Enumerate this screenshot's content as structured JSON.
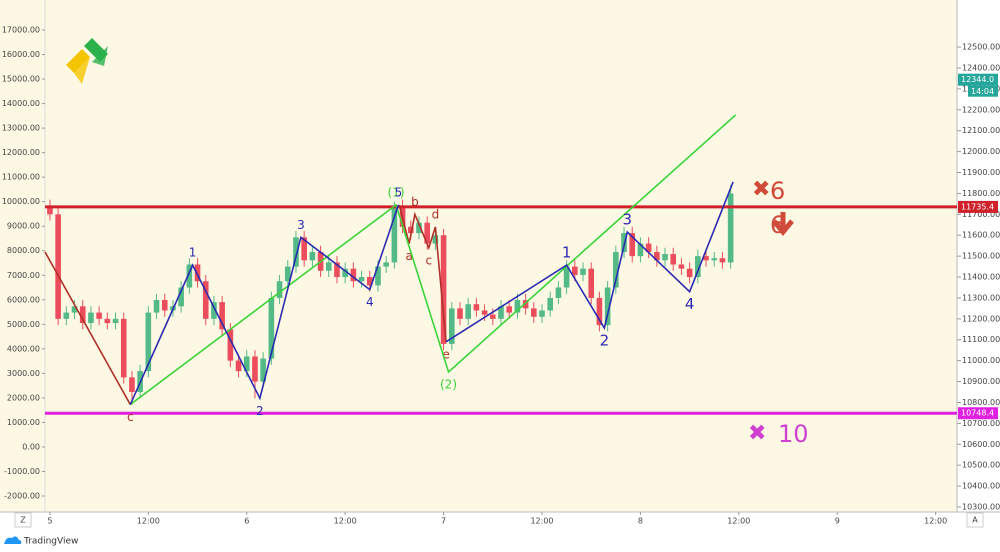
{
  "chart_data": {
    "type": "candlestick",
    "x": [
      0,
      1,
      2,
      3,
      4,
      5,
      6,
      7,
      8,
      9,
      10,
      11,
      12,
      13,
      14,
      15,
      16,
      17,
      18,
      19,
      20,
      21,
      22,
      23,
      24,
      25,
      26,
      27,
      28,
      29,
      30,
      31,
      32,
      33,
      34,
      35,
      36,
      37,
      38,
      39,
      40,
      41,
      42,
      43,
      44,
      45,
      46,
      47,
      48,
      49,
      50,
      51,
      52,
      53,
      54,
      55,
      56,
      57,
      58,
      59,
      60,
      61,
      62,
      63,
      64,
      65,
      66,
      67,
      68,
      69,
      70,
      71,
      72,
      73,
      74,
      75,
      76,
      77,
      78,
      79,
      80,
      81,
      82,
      83
    ],
    "open": [
      11740,
      11700,
      11200,
      11230,
      11260,
      11180,
      11230,
      11200,
      11180,
      11200,
      10920,
      10850,
      10950,
      11230,
      11290,
      11240,
      11260,
      11350,
      11460,
      11380,
      11200,
      11280,
      11150,
      11000,
      10950,
      11020,
      10900,
      11010,
      11300,
      11380,
      11450,
      11590,
      11480,
      11520,
      11430,
      11470,
      11400,
      11440,
      11380,
      11400,
      11360,
      11450,
      11470,
      11740,
      11640,
      11610,
      11660,
      11560,
      11600,
      11080,
      11250,
      11200,
      11270,
      11240,
      11220,
      11200,
      11260,
      11230,
      11290,
      11250,
      11210,
      11240,
      11300,
      11350,
      11450,
      11410,
      11440,
      11300,
      11170,
      11350,
      11520,
      11610,
      11500,
      11560,
      11520,
      11480,
      11510,
      11460,
      11440,
      11400,
      11500,
      11480,
      11490,
      11470
    ],
    "high": [
      11770,
      11730,
      11260,
      11290,
      11290,
      11260,
      11260,
      11230,
      11230,
      11230,
      10950,
      10980,
      11260,
      11320,
      11320,
      11290,
      11380,
      11490,
      11490,
      11410,
      11310,
      11310,
      11180,
      11030,
      11050,
      11050,
      11040,
      11330,
      11410,
      11480,
      11620,
      11620,
      11550,
      11550,
      11500,
      11500,
      11470,
      11470,
      11430,
      11430,
      11480,
      11500,
      11760,
      11770,
      11670,
      11690,
      11690,
      11630,
      11630,
      11280,
      11280,
      11300,
      11300,
      11270,
      11250,
      11290,
      11290,
      11320,
      11320,
      11280,
      11270,
      11330,
      11380,
      11480,
      11480,
      11470,
      11470,
      11330,
      11380,
      11550,
      11640,
      11640,
      11590,
      11590,
      11550,
      11540,
      11540,
      11490,
      11470,
      11530,
      11530,
      11520,
      11520,
      11840
    ],
    "low": [
      11670,
      11170,
      11170,
      11200,
      11150,
      11150,
      11170,
      11150,
      11150,
      10890,
      10790,
      10820,
      10920,
      11200,
      11210,
      11210,
      11230,
      11320,
      11350,
      11170,
      11170,
      11120,
      10970,
      10920,
      10920,
      10820,
      10870,
      10980,
      11270,
      11350,
      11420,
      11450,
      11450,
      11400,
      11400,
      11370,
      11370,
      11350,
      11350,
      11330,
      11330,
      11420,
      11440,
      11610,
      11580,
      11580,
      11530,
      11530,
      11050,
      11050,
      11170,
      11170,
      11210,
      11190,
      11170,
      11170,
      11200,
      11200,
      11220,
      11180,
      11180,
      11210,
      11270,
      11320,
      11380,
      11380,
      11270,
      11140,
      11140,
      11320,
      11490,
      11470,
      11470,
      11490,
      11450,
      11450,
      11430,
      11410,
      11370,
      11370,
      11450,
      11450,
      11440,
      11440
    ],
    "close": [
      11700,
      11200,
      11230,
      11260,
      11180,
      11230,
      11200,
      11180,
      11200,
      10920,
      10850,
      10950,
      11230,
      11290,
      11240,
      11260,
      11350,
      11460,
      11380,
      11200,
      11280,
      11150,
      11000,
      10950,
      11020,
      10900,
      11010,
      11300,
      11380,
      11450,
      11590,
      11480,
      11520,
      11430,
      11470,
      11400,
      11440,
      11380,
      11400,
      11360,
      11450,
      11470,
      11740,
      11640,
      11610,
      11660,
      11560,
      11600,
      11080,
      11250,
      11200,
      11270,
      11240,
      11220,
      11200,
      11260,
      11230,
      11290,
      11250,
      11210,
      11240,
      11300,
      11350,
      11450,
      11410,
      11440,
      11300,
      11170,
      11350,
      11520,
      11610,
      11500,
      11560,
      11520,
      11480,
      11510,
      11460,
      11440,
      11400,
      11500,
      11480,
      11490,
      11470,
      11800
    ],
    "up_color": "#53b987",
    "down_color": "#eb4d5c",
    "xlim": [
      -0.6,
      110.6
    ],
    "xticks": [
      {
        "value": 0,
        "label": "5"
      },
      {
        "value": 12,
        "label": "12:00"
      },
      {
        "value": 24,
        "label": "6"
      },
      {
        "value": 36,
        "label": "12:00"
      },
      {
        "value": 48,
        "label": "7"
      },
      {
        "value": 60,
        "label": "12:00"
      },
      {
        "value": 72,
        "label": "8"
      },
      {
        "value": 84,
        "label": "12:00"
      },
      {
        "value": 96,
        "label": "9"
      },
      {
        "value": 108,
        "label": "12:00"
      }
    ],
    "ylim": [
      10276,
      12620
    ],
    "yticks": [
      {
        "value": 12500,
        "label": "12500.00"
      },
      {
        "value": 12400,
        "label": "12400.00"
      },
      {
        "value": 12300,
        "label": "12300.00"
      },
      {
        "value": 12200,
        "label": "12200.00"
      },
      {
        "value": 12100,
        "label": "12100.00"
      },
      {
        "value": 12000,
        "label": "12000.00"
      },
      {
        "value": 11900,
        "label": "11900.00"
      },
      {
        "value": 11800,
        "label": "11800.00"
      },
      {
        "value": 11700,
        "label": "11700.00"
      },
      {
        "value": 11600,
        "label": "11600.00"
      },
      {
        "value": 11500,
        "label": "11500.00"
      },
      {
        "value": 11400,
        "label": "11400.00"
      },
      {
        "value": 11300,
        "label": "11300.00"
      },
      {
        "value": 11200,
        "label": "11200.00"
      },
      {
        "value": 11100,
        "label": "11100.00"
      },
      {
        "value": 11000,
        "label": "11000.00"
      },
      {
        "value": 10900,
        "label": "10900.00"
      },
      {
        "value": 10800,
        "label": "10800.00"
      },
      {
        "value": 10700,
        "label": "10700.00"
      },
      {
        "value": 10600,
        "label": "10600.00"
      },
      {
        "value": 10500,
        "label": "10500.00"
      },
      {
        "value": 10400,
        "label": "10400.00"
      },
      {
        "value": 10300,
        "label": "10300.00"
      }
    ],
    "y2lim": [
      -2653,
      17327
    ],
    "y2ticks": [
      {
        "value": 17000,
        "label": "17000.00"
      },
      {
        "value": 16000,
        "label": "16000.00"
      },
      {
        "value": 15000,
        "label": "15000.00"
      },
      {
        "value": 14000,
        "label": "14000.00"
      },
      {
        "value": 13000,
        "label": "13000.00"
      },
      {
        "value": 12000,
        "label": "12000.00"
      },
      {
        "value": 11000,
        "label": "11000.00"
      },
      {
        "value": 10000,
        "label": "10000.00"
      },
      {
        "value": 9000,
        "label": "9000.00"
      },
      {
        "value": 8000,
        "label": "8000.00"
      },
      {
        "value": 7000,
        "label": "7000.00"
      },
      {
        "value": 6000,
        "label": "6000.00"
      },
      {
        "value": 5000,
        "label": "5000.00"
      },
      {
        "value": 4000,
        "label": "4000.00"
      },
      {
        "value": 3000,
        "label": "3000.00"
      },
      {
        "value": 2000,
        "label": "2000.00"
      },
      {
        "value": 1000,
        "label": "1000.00"
      },
      {
        "value": 0,
        "label": "0.00"
      },
      {
        "value": -1000,
        "label": "-1000.00"
      },
      {
        "value": -2000,
        "label": "-2000.00"
      }
    ],
    "hlines": [
      {
        "value": 11735.4,
        "color": "#d0202a"
      },
      {
        "value": 10748.4,
        "color": "#e020e0"
      }
    ],
    "last_price": {
      "value": 12344,
      "label": "12344.0",
      "color": "#26a69a"
    },
    "countdown": "14:04",
    "waves": [
      {
        "color": "#b03028",
        "points": [
          {
            "x": -0.6,
            "y": 11520
          },
          {
            "x": 9.8,
            "y": 10790,
            "label": "c",
            "pos": "below"
          }
        ]
      },
      {
        "color": "#b03028",
        "points": [
          {
            "x": 42.6,
            "y": 11745
          },
          {
            "x": 43.8,
            "y": 11560,
            "label": "a",
            "pos": "below"
          },
          {
            "x": 44.5,
            "y": 11700,
            "label": "b",
            "pos": "above"
          },
          {
            "x": 46.2,
            "y": 11540,
            "label": "c",
            "pos": "below"
          },
          {
            "x": 47,
            "y": 11640,
            "label": "d",
            "pos": "above"
          },
          {
            "x": 48.3,
            "y": 11090,
            "label": "e",
            "pos": "below"
          }
        ]
      },
      {
        "color": "#3ad43a",
        "points": [
          {
            "x": 9.8,
            "y": 10790
          },
          {
            "x": 42.2,
            "y": 11745,
            "label": "(1)",
            "pos": "above"
          },
          {
            "x": 48.6,
            "y": 10946,
            "label": "(2)",
            "pos": "below"
          },
          {
            "x": 83.6,
            "y": 12175
          }
        ]
      },
      {
        "color": "#2b2bb0",
        "points": [
          {
            "x": 9.8,
            "y": 10790
          },
          {
            "x": 17.4,
            "y": 11457,
            "label": "1",
            "pos": "above"
          },
          {
            "x": 25.6,
            "y": 10820,
            "label": "2",
            "pos": "below"
          },
          {
            "x": 30.6,
            "y": 11590,
            "label": "3",
            "pos": "above"
          },
          {
            "x": 39,
            "y": 11340,
            "label": "4",
            "pos": "below"
          },
          {
            "x": 42.5,
            "y": 11745,
            "label": "5",
            "pos": "above"
          }
        ]
      },
      {
        "color": "#2b2bb0",
        "points": [
          {
            "x": 48.3,
            "y": 11090
          },
          {
            "x": 63,
            "y": 11457,
            "label": "1",
            "pos": "above"
          },
          {
            "x": 67.6,
            "y": 11156,
            "label": "2",
            "pos": "below"
          },
          {
            "x": 70.4,
            "y": 11615,
            "label": "3",
            "pos": "above"
          },
          {
            "x": 78,
            "y": 11330,
            "label": "4",
            "pos": "below"
          },
          {
            "x": 83.3,
            "y": 11855
          }
        ]
      }
    ],
    "annotations": [
      {
        "text": "6",
        "color": "#d04a3a"
      },
      {
        "text": "6",
        "color": "#d04a3a"
      },
      {
        "text": "10",
        "color": "#d040d0"
      }
    ]
  },
  "footer": {
    "brand": "TradingView"
  }
}
